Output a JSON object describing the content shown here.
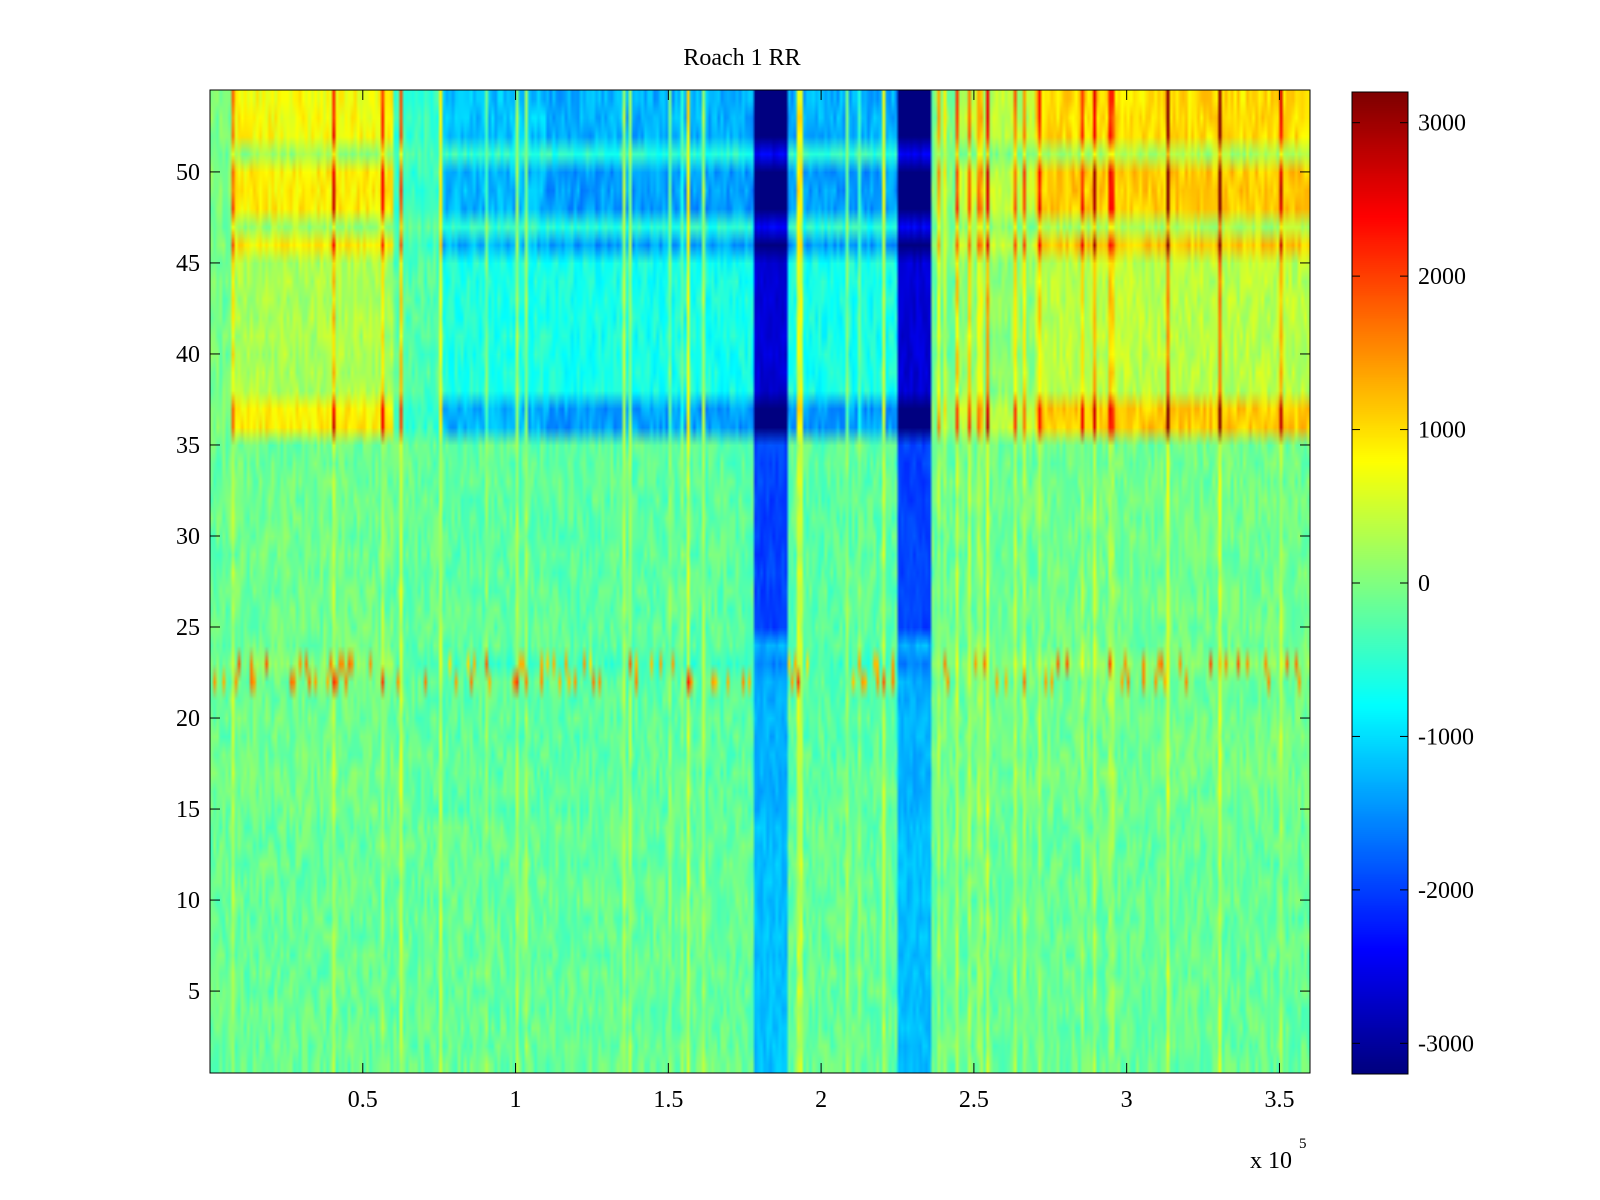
{
  "chart_data": {
    "type": "heatmap",
    "title": "Roach 1 RR",
    "xlabel": "",
    "ylabel": "",
    "x_multiplier": {
      "base": "x 10",
      "exponent": "5"
    },
    "xlim": [
      0,
      360000
    ],
    "ylim": [
      0.5,
      54.5
    ],
    "x_ticks": [
      {
        "value": 50000,
        "label": "0.5"
      },
      {
        "value": 100000,
        "label": "1"
      },
      {
        "value": 150000,
        "label": "1.5"
      },
      {
        "value": 200000,
        "label": "2"
      },
      {
        "value": 250000,
        "label": "2.5"
      },
      {
        "value": 300000,
        "label": "3"
      },
      {
        "value": 350000,
        "label": "3.5"
      }
    ],
    "y_ticks": [
      {
        "value": 5,
        "label": "5"
      },
      {
        "value": 10,
        "label": "10"
      },
      {
        "value": 15,
        "label": "15"
      },
      {
        "value": 20,
        "label": "20"
      },
      {
        "value": 25,
        "label": "25"
      },
      {
        "value": 30,
        "label": "30"
      },
      {
        "value": 35,
        "label": "35"
      },
      {
        "value": 40,
        "label": "40"
      },
      {
        "value": 45,
        "label": "45"
      },
      {
        "value": 50,
        "label": "50"
      }
    ],
    "colorbar": {
      "colormap": "jet",
      "clim": [
        -3200,
        3200
      ],
      "ticks": [
        {
          "value": 3000,
          "label": "3000"
        },
        {
          "value": 2000,
          "label": "2000"
        },
        {
          "value": 1000,
          "label": "1000"
        },
        {
          "value": 0,
          "label": "0"
        },
        {
          "value": -1000,
          "label": "-1000"
        },
        {
          "value": -2000,
          "label": "-2000"
        },
        {
          "value": -3000,
          "label": "-3000"
        }
      ]
    },
    "rows": 54,
    "column_segments": [
      {
        "x0": 0,
        "x1": 8000,
        "base": 100
      },
      {
        "x0": 8000,
        "x1": 60000,
        "base": 650
      },
      {
        "x0": 60000,
        "x1": 75000,
        "base": -200
      },
      {
        "x0": 75000,
        "x1": 110000,
        "base": -700
      },
      {
        "x0": 110000,
        "x1": 178000,
        "base": -800
      },
      {
        "x0": 178000,
        "x1": 189000,
        "base": -2700
      },
      {
        "x0": 189000,
        "x1": 225000,
        "base": -800
      },
      {
        "x0": 225000,
        "x1": 236000,
        "base": -2700
      },
      {
        "x0": 236000,
        "x1": 245000,
        "base": 100
      },
      {
        "x0": 245000,
        "x1": 270000,
        "base": 350
      },
      {
        "x0": 270000,
        "x1": 360000,
        "base": 800
      }
    ],
    "row_bands": [
      {
        "row_from": 1,
        "row_to": 14,
        "level": 0.0
      },
      {
        "row_from": 15,
        "row_to": 22,
        "level": 0.05
      },
      {
        "row_from": 23,
        "row_to": 23,
        "level": 0.2
      },
      {
        "row_from": 24,
        "row_to": 35,
        "level": 0.05
      },
      {
        "row_from": 36,
        "row_to": 37,
        "level": 1.0
      },
      {
        "row_from": 38,
        "row_to": 45,
        "level": 0.4
      },
      {
        "row_from": 46,
        "row_to": 46,
        "level": 1.0
      },
      {
        "row_from": 47,
        "row_to": 47,
        "level": 0.3
      },
      {
        "row_from": 48,
        "row_to": 50,
        "level": 1.0
      },
      {
        "row_from": 51,
        "row_to": 51,
        "level": 0.3
      },
      {
        "row_from": 52,
        "row_to": 53,
        "level": 0.9
      },
      {
        "row_from": 54,
        "row_to": 54,
        "level": 0.9
      }
    ]
  }
}
